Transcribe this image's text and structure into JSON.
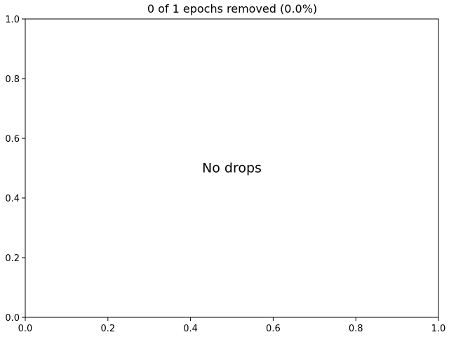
{
  "chart_data": {
    "type": "bar",
    "title": "0 of 1 epochs removed (0.0%)",
    "xlabel": "",
    "ylabel": "",
    "xlim": [
      0.0,
      1.0
    ],
    "ylim": [
      0.0,
      1.0
    ],
    "x_ticks": [
      "0.0",
      "0.2",
      "0.4",
      "0.6",
      "0.8",
      "1.0"
    ],
    "y_ticks": [
      "0.0",
      "0.2",
      "0.4",
      "0.6",
      "0.8",
      "1.0"
    ],
    "categories": [],
    "values": [],
    "annotation": {
      "text": "No drops",
      "x": 0.5,
      "y": 0.5
    },
    "grid": false,
    "legend": "none"
  }
}
